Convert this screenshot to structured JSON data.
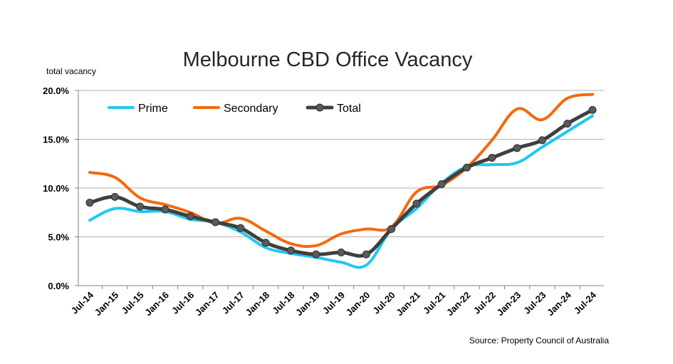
{
  "chart_data": {
    "type": "line",
    "title": "Melbourne CBD Office Vacancy",
    "ylabel": "total vacancy",
    "xlabel": "",
    "source": "Source: Property Council of Australia",
    "ylim": [
      0,
      20
    ],
    "yticks": [
      0,
      5,
      10,
      15,
      20
    ],
    "ytick_labels": [
      "0.0%",
      "5.0%",
      "10.0%",
      "15.0%",
      "20.0%"
    ],
    "grid": true,
    "legend_position": "top-left",
    "categories": [
      "Jul-14",
      "Jan-15",
      "Jul-15",
      "Jan-16",
      "Jul-16",
      "Jan-17",
      "Jul-17",
      "Jan-18",
      "Jul-18",
      "Jan-19",
      "Jul-19",
      "Jan-20",
      "Jul-20",
      "Jan-21",
      "Jul-21",
      "Jan-22",
      "Jul-22",
      "Jan-23",
      "Jul-23",
      "Jan-24",
      "Jul-24"
    ],
    "series": [
      {
        "name": "Prime",
        "color": "#1fc8f0",
        "marker": false,
        "values": [
          6.7,
          7.9,
          7.6,
          7.6,
          6.8,
          6.5,
          5.5,
          3.9,
          3.3,
          2.9,
          2.4,
          2.1,
          5.8,
          7.9,
          10.5,
          12.2,
          12.4,
          12.6,
          14.2,
          15.8,
          17.4
        ]
      },
      {
        "name": "Secondary",
        "color": "#f4690e",
        "marker": false,
        "values": [
          11.6,
          11.1,
          9.0,
          8.3,
          7.5,
          6.4,
          6.9,
          5.6,
          4.3,
          4.1,
          5.3,
          5.8,
          6.0,
          9.6,
          10.3,
          12.1,
          14.9,
          18.1,
          17.0,
          19.2,
          19.6
        ]
      },
      {
        "name": "Total",
        "color": "#3f3f3f",
        "marker": true,
        "values": [
          8.5,
          9.1,
          8.1,
          7.8,
          7.1,
          6.5,
          5.9,
          4.4,
          3.6,
          3.2,
          3.4,
          3.2,
          5.8,
          8.4,
          10.4,
          12.1,
          13.1,
          14.1,
          14.9,
          16.6,
          18.0
        ]
      }
    ]
  }
}
